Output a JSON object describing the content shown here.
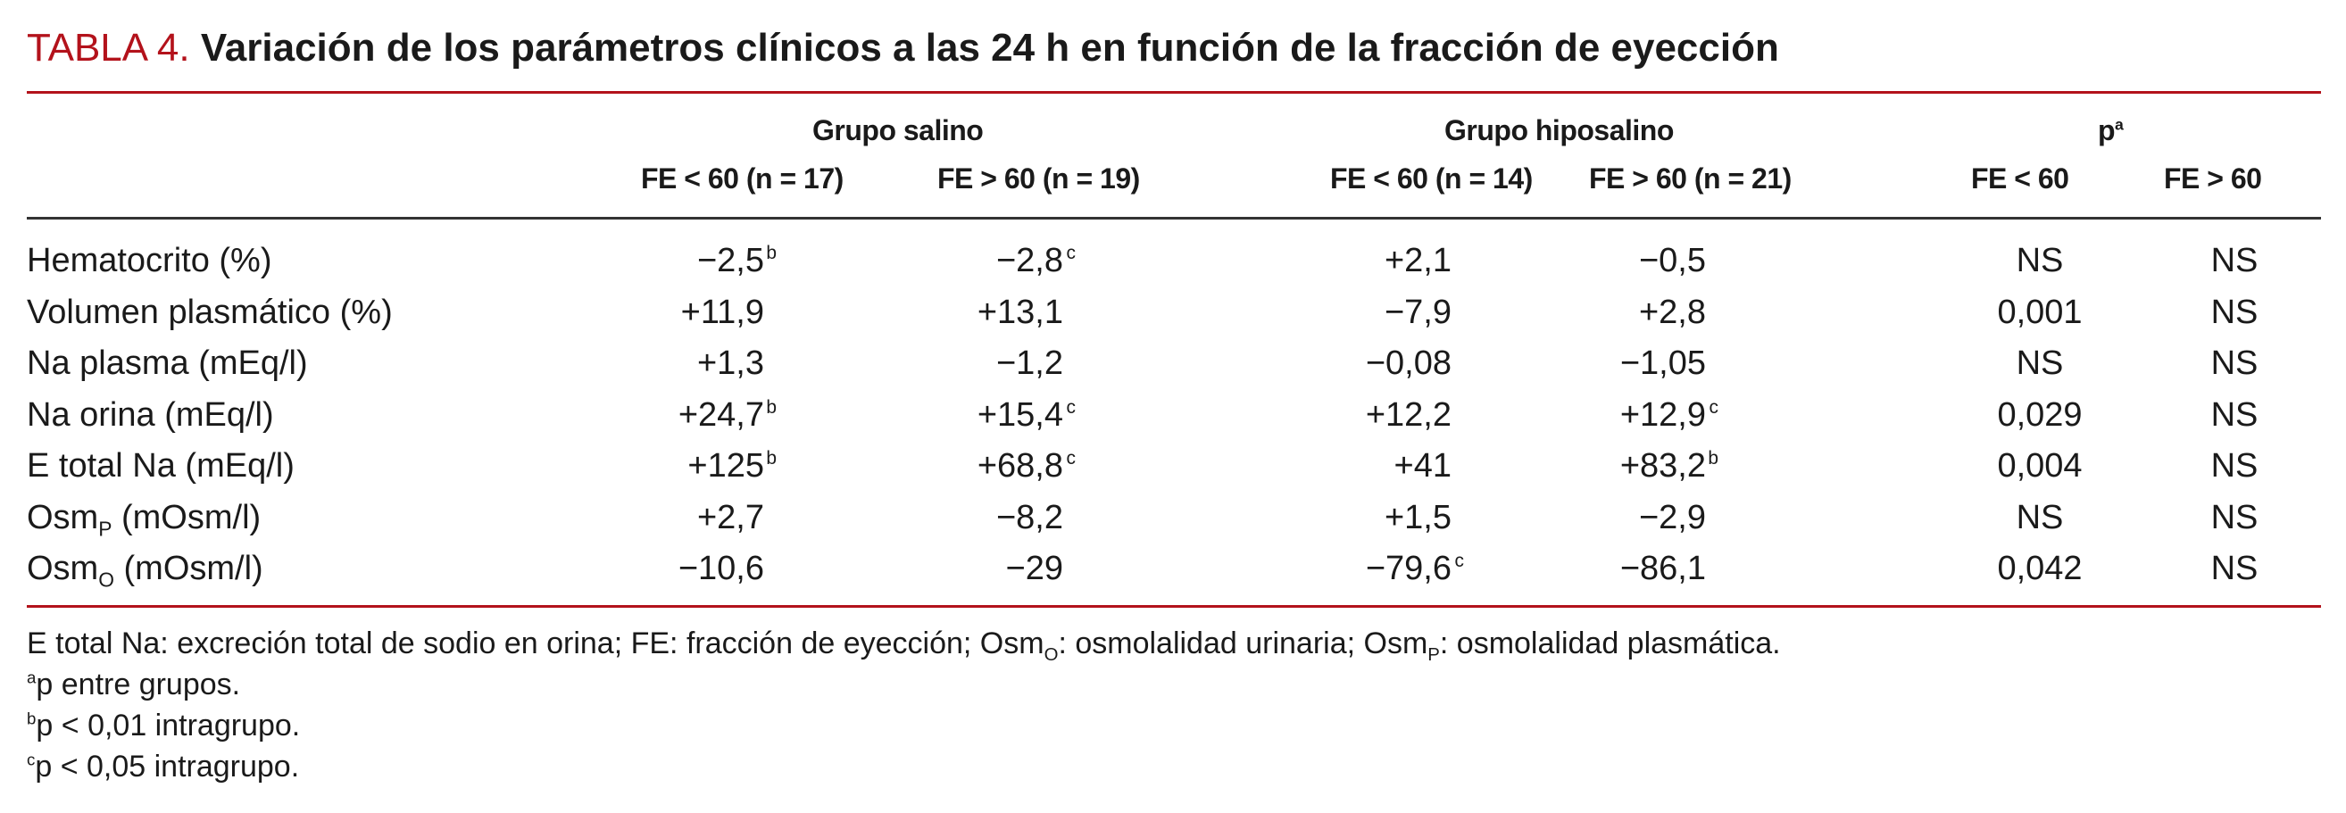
{
  "title": {
    "label": "TABLA 4.",
    "text": "Variación de los parámetros clínicos a las 24 h en función de la fracción de eyección"
  },
  "columns": {
    "group_salino": "Grupo salino",
    "group_hiposalino": "Grupo hiposalino",
    "group_p": "p",
    "group_p_sup": "a",
    "sub": [
      "FE < 60 (n = 17)",
      "FE > 60 (n = 19)",
      "FE < 60 (n = 14)",
      "FE > 60 (n = 21)",
      "FE < 60",
      "FE > 60"
    ]
  },
  "rows": [
    {
      "label": "Hematocrito (%)",
      "label_sub": "",
      "label_rest": "",
      "cells": [
        {
          "v": "−2,5",
          "s": "b"
        },
        {
          "v": "−2,8",
          "s": "c"
        },
        {
          "v": "+2,1",
          "s": ""
        },
        {
          "v": "−0,5",
          "s": ""
        },
        {
          "v": "NS",
          "s": ""
        },
        {
          "v": "NS",
          "s": ""
        }
      ]
    },
    {
      "label": "Volumen plasmático (%)",
      "label_sub": "",
      "label_rest": "",
      "cells": [
        {
          "v": "+11,9",
          "s": ""
        },
        {
          "v": "+13,1",
          "s": ""
        },
        {
          "v": "−7,9",
          "s": ""
        },
        {
          "v": "+2,8",
          "s": ""
        },
        {
          "v": "0,001",
          "s": ""
        },
        {
          "v": "NS",
          "s": ""
        }
      ]
    },
    {
      "label": "Na plasma (mEq/l)",
      "label_sub": "",
      "label_rest": "",
      "cells": [
        {
          "v": "+1,3",
          "s": ""
        },
        {
          "v": "−1,2",
          "s": ""
        },
        {
          "v": "−0,08",
          "s": ""
        },
        {
          "v": "−1,05",
          "s": ""
        },
        {
          "v": "NS",
          "s": ""
        },
        {
          "v": "NS",
          "s": ""
        }
      ]
    },
    {
      "label": "Na orina (mEq/l)",
      "label_sub": "",
      "label_rest": "",
      "cells": [
        {
          "v": "+24,7",
          "s": "b"
        },
        {
          "v": "+15,4",
          "s": "c"
        },
        {
          "v": "+12,2",
          "s": ""
        },
        {
          "v": "+12,9",
          "s": "c"
        },
        {
          "v": "0,029",
          "s": ""
        },
        {
          "v": "NS",
          "s": ""
        }
      ]
    },
    {
      "label": "E total Na (mEq/l)",
      "label_sub": "",
      "label_rest": "",
      "cells": [
        {
          "v": "+125",
          "s": "b"
        },
        {
          "v": "+68,8",
          "s": "c"
        },
        {
          "v": "+41",
          "s": ""
        },
        {
          "v": "+83,2",
          "s": "b"
        },
        {
          "v": "0,004",
          "s": ""
        },
        {
          "v": "NS",
          "s": ""
        }
      ]
    },
    {
      "label": "Osm",
      "label_sub": "P",
      "label_rest": " (mOsm/l)",
      "cells": [
        {
          "v": "+2,7",
          "s": ""
        },
        {
          "v": "−8,2",
          "s": ""
        },
        {
          "v": "+1,5",
          "s": ""
        },
        {
          "v": "−2,9",
          "s": ""
        },
        {
          "v": "NS",
          "s": ""
        },
        {
          "v": "NS",
          "s": ""
        }
      ]
    },
    {
      "label": "Osm",
      "label_sub": "O",
      "label_rest": " (mOsm/l)",
      "cells": [
        {
          "v": "−10,6",
          "s": ""
        },
        {
          "v": "−29",
          "s": ""
        },
        {
          "v": "−79,6",
          "s": "c"
        },
        {
          "v": "−86,1",
          "s": ""
        },
        {
          "v": "0,042",
          "s": ""
        },
        {
          "v": "NS",
          "s": ""
        }
      ]
    }
  ],
  "footnotes": {
    "abbrev_a": "E total Na: excreción total de sodio en orina; FE: fracción de eyección; Osm",
    "abbrev_sub1": "O",
    "abbrev_b": ": osmolalidad urinaria; Osm",
    "abbrev_sub2": "P",
    "abbrev_c": ": osmolalidad plasmática.",
    "notes": [
      {
        "mark": "a",
        "text": "p entre grupos."
      },
      {
        "mark": "b",
        "text": "p < 0,01 intragrupo."
      },
      {
        "mark": "c",
        "text": "p < 0,05 intragrupo."
      }
    ]
  },
  "colors": {
    "accent": "#b3121b",
    "text": "#1a1a1a"
  }
}
